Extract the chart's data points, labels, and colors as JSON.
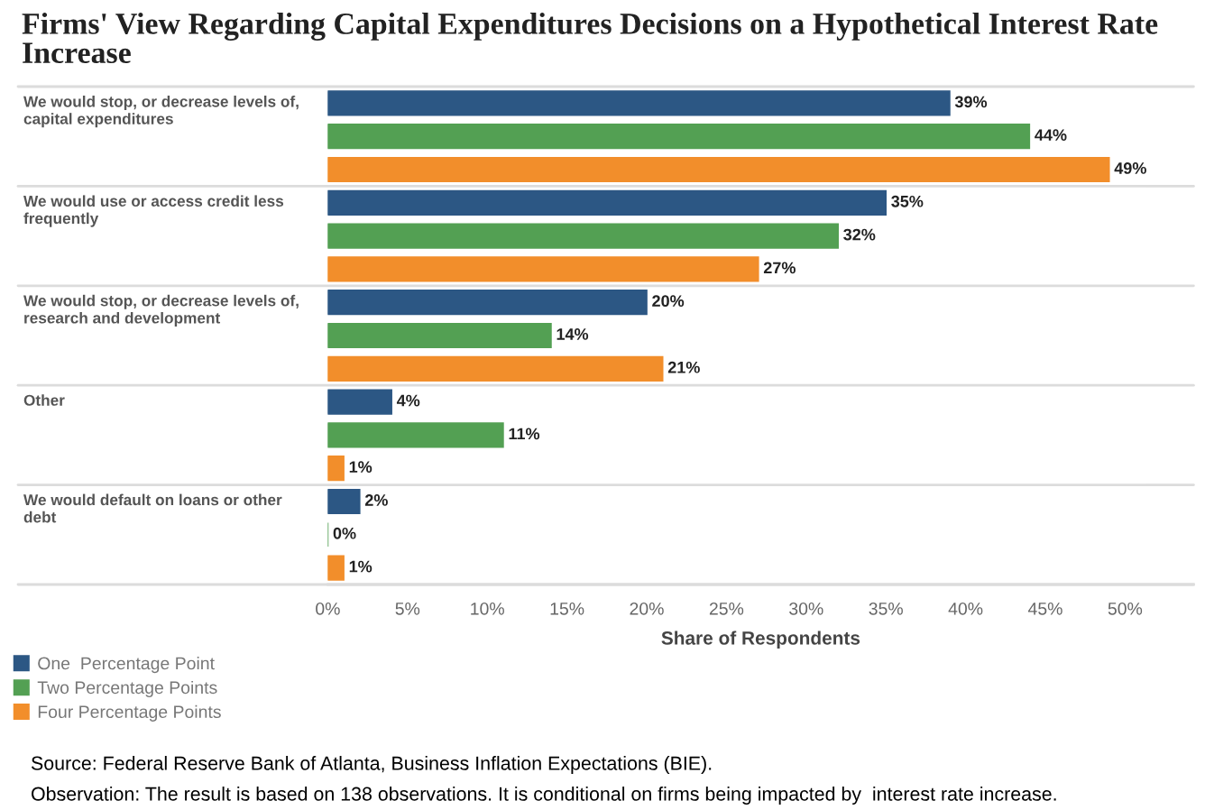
{
  "chart_data": {
    "type": "bar",
    "orientation": "horizontal",
    "title": "Firms' View Regarding Capital Expenditures Decisions on a Hypothetical Interest Rate Increase",
    "xlabel": "Share of Respondents",
    "categories": [
      "We would stop, or decrease levels of, capital expenditures",
      "We would use or access credit less frequently",
      "We would stop, or decrease levels of, research and development",
      "Other",
      "We would default on loans or other debt"
    ],
    "series": [
      {
        "name": "One  Percentage Point",
        "color": "#2c5784",
        "values": [
          39,
          35,
          20,
          4,
          2
        ],
        "value_labels": [
          "39%",
          "35%",
          "20%",
          "4%",
          "2%"
        ]
      },
      {
        "name": "Two Percentage Points",
        "color": "#53a053",
        "values": [
          44,
          32,
          14,
          11,
          0
        ],
        "value_labels": [
          "44%",
          "32%",
          "14%",
          "11%",
          "0%"
        ]
      },
      {
        "name": "Four Percentage Points",
        "color": "#f28e2b",
        "values": [
          49,
          27,
          21,
          1,
          1
        ],
        "value_labels": [
          "49%",
          "27%",
          "21%",
          "1%",
          "1%"
        ]
      }
    ],
    "xlim": [
      0,
      54.3
    ],
    "xticks": [
      {
        "value": 0,
        "label": "0%"
      },
      {
        "value": 5,
        "label": "5%"
      },
      {
        "value": 10,
        "label": "10%"
      },
      {
        "value": 15,
        "label": "15%"
      },
      {
        "value": 20,
        "label": "20%"
      },
      {
        "value": 25,
        "label": "25%"
      },
      {
        "value": 30,
        "label": "30%"
      },
      {
        "value": 35,
        "label": "35%"
      },
      {
        "value": 40,
        "label": "40%"
      },
      {
        "value": 45,
        "label": "45%"
      },
      {
        "value": 50,
        "label": "50%"
      }
    ],
    "legend": "bottom left",
    "annotations": [
      "Source: Federal Reserve Bank of Atlanta, Business Inflation Expectations (BIE).",
      "Observation: The result is based on 138 observations. It is conditional on firms being impacted by  interest rate increase."
    ]
  }
}
